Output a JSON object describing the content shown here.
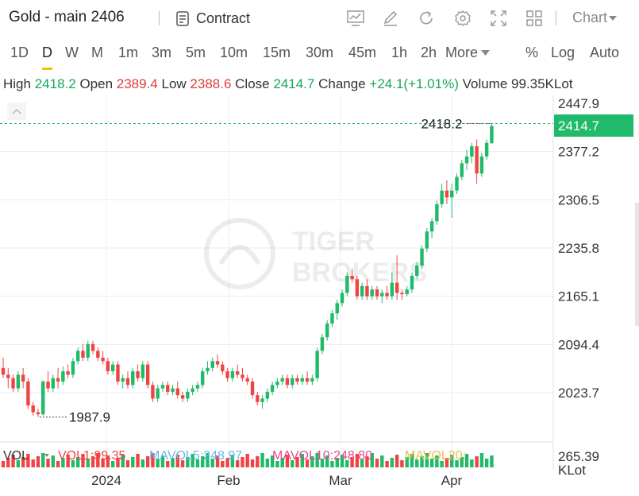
{
  "title": "Gold - main 2406",
  "toolbar": {
    "contract_label": "Contract",
    "chart_label": "Chart",
    "icons": [
      "chart-indicator-icon",
      "draw-pen-icon",
      "refresh-icon",
      "settings-gear-icon",
      "fullscreen-icon",
      "layout-grid-icon"
    ]
  },
  "intervals": [
    "1D",
    "D",
    "W",
    "M",
    "1m",
    "3m",
    "5m",
    "10m",
    "15m",
    "30m",
    "45m",
    "1h",
    "2h"
  ],
  "interval_more": "More",
  "active_interval": "D",
  "scale_options": {
    "percent": "%",
    "log": "Log",
    "auto": "Auto"
  },
  "ohlc": {
    "high_label": "High",
    "high": "2418.2",
    "open_label": "Open",
    "open": "2389.4",
    "low_label": "Low",
    "low": "2388.6",
    "close_label": "Close",
    "close": "2414.7",
    "change_label": "Change",
    "change": "+24.1(+1.01%)",
    "volume_label": "Volume",
    "volume": "99.35KLot"
  },
  "watermark": {
    "line1": "TIGER",
    "line2": "BROKERS"
  },
  "volume_panel": {
    "vol_label": "VOL",
    "vol1": "VOL1:99.35",
    "mavol5": "MAVOL5:248.97",
    "mavol10": "MAVOL10:248.80",
    "mavol20": "MAVOL20:",
    "axis_top": "265.39",
    "axis_unit": "KLot"
  },
  "colors": {
    "up": "#1fba6a",
    "down": "#ef4444",
    "accent": "#f5c000",
    "vol1": "#ef4444",
    "mavol5": "#6ab8e8",
    "mavol10": "#e64b8a",
    "mavol20": "#e8c14a"
  },
  "chart_data": {
    "type": "candlestick",
    "y_ticks": [
      "2447.9",
      "2377.2",
      "2306.5",
      "2235.8",
      "2165.1",
      "2094.4",
      "2023.7"
    ],
    "x_ticks": [
      "2024",
      "Feb",
      "Mar",
      "Apr"
    ],
    "last_price": "2414.7",
    "high_marker": "2418.2",
    "low_marker": "1987.9",
    "ylim": [
      1960,
      2470
    ],
    "candles": [
      [
        2060,
        2075,
        2045,
        2050
      ],
      [
        2050,
        2060,
        2030,
        2045
      ],
      [
        2045,
        2050,
        2025,
        2030
      ],
      [
        2030,
        2055,
        2025,
        2050
      ],
      [
        2050,
        2060,
        2030,
        2040
      ],
      [
        2040,
        2045,
        2000,
        2005
      ],
      [
        2005,
        2010,
        1990,
        1995
      ],
      [
        1995,
        2000,
        1988,
        1992
      ],
      [
        1992,
        2042,
        1990,
        2040
      ],
      [
        2040,
        2055,
        2025,
        2030
      ],
      [
        2030,
        2050,
        2025,
        2045
      ],
      [
        2045,
        2060,
        2030,
        2040
      ],
      [
        2040,
        2062,
        2035,
        2055
      ],
      [
        2055,
        2065,
        2045,
        2050
      ],
      [
        2050,
        2075,
        2045,
        2070
      ],
      [
        2070,
        2090,
        2065,
        2085
      ],
      [
        2085,
        2095,
        2070,
        2075
      ],
      [
        2075,
        2100,
        2070,
        2095
      ],
      [
        2095,
        2100,
        2080,
        2085
      ],
      [
        2085,
        2090,
        2070,
        2075
      ],
      [
        2075,
        2085,
        2065,
        2070
      ],
      [
        2070,
        2075,
        2050,
        2055
      ],
      [
        2055,
        2070,
        2050,
        2065
      ],
      [
        2065,
        2070,
        2035,
        2040
      ],
      [
        2040,
        2050,
        2030,
        2045
      ],
      [
        2045,
        2055,
        2030,
        2035
      ],
      [
        2035,
        2060,
        2030,
        2055
      ],
      [
        2055,
        2065,
        2040,
        2045
      ],
      [
        2045,
        2070,
        2040,
        2065
      ],
      [
        2065,
        2070,
        2030,
        2035
      ],
      [
        2035,
        2040,
        2010,
        2015
      ],
      [
        2015,
        2035,
        2010,
        2030
      ],
      [
        2030,
        2040,
        2025,
        2035
      ],
      [
        2035,
        2040,
        2020,
        2025
      ],
      [
        2025,
        2035,
        2020,
        2030
      ],
      [
        2030,
        2040,
        2015,
        2020
      ],
      [
        2020,
        2025,
        2010,
        2015
      ],
      [
        2015,
        2030,
        2010,
        2025
      ],
      [
        2025,
        2035,
        2020,
        2030
      ],
      [
        2030,
        2040,
        2025,
        2035
      ],
      [
        2035,
        2060,
        2030,
        2055
      ],
      [
        2055,
        2070,
        2050,
        2060
      ],
      [
        2060,
        2075,
        2055,
        2070
      ],
      [
        2070,
        2080,
        2060,
        2065
      ],
      [
        2065,
        2070,
        2050,
        2055
      ],
      [
        2055,
        2060,
        2040,
        2045
      ],
      [
        2045,
        2060,
        2040,
        2055
      ],
      [
        2055,
        2065,
        2045,
        2050
      ],
      [
        2050,
        2060,
        2040,
        2045
      ],
      [
        2045,
        2050,
        2035,
        2040
      ],
      [
        2040,
        2045,
        2015,
        2020
      ],
      [
        2020,
        2025,
        2005,
        2010
      ],
      [
        2010,
        2020,
        2000,
        2015
      ],
      [
        2015,
        2030,
        2010,
        2025
      ],
      [
        2025,
        2040,
        2020,
        2035
      ],
      [
        2035,
        2045,
        2030,
        2040
      ],
      [
        2040,
        2050,
        2035,
        2045
      ],
      [
        2045,
        2050,
        2030,
        2035
      ],
      [
        2035,
        2050,
        2030,
        2045
      ],
      [
        2045,
        2050,
        2035,
        2040
      ],
      [
        2040,
        2050,
        2035,
        2045
      ],
      [
        2045,
        2055,
        2035,
        2040
      ],
      [
        2040,
        2050,
        2035,
        2045
      ],
      [
        2045,
        2090,
        2040,
        2085
      ],
      [
        2085,
        2110,
        2080,
        2105
      ],
      [
        2105,
        2130,
        2100,
        2125
      ],
      [
        2125,
        2145,
        2120,
        2140
      ],
      [
        2140,
        2160,
        2130,
        2155
      ],
      [
        2155,
        2175,
        2150,
        2170
      ],
      [
        2170,
        2200,
        2165,
        2195
      ],
      [
        2195,
        2205,
        2185,
        2190
      ],
      [
        2190,
        2195,
        2160,
        2165
      ],
      [
        2165,
        2185,
        2160,
        2180
      ],
      [
        2180,
        2190,
        2160,
        2165
      ],
      [
        2165,
        2180,
        2160,
        2175
      ],
      [
        2175,
        2180,
        2160,
        2165
      ],
      [
        2165,
        2175,
        2155,
        2170
      ],
      [
        2170,
        2180,
        2160,
        2165
      ],
      [
        2165,
        2200,
        2160,
        2185
      ],
      [
        2185,
        2225,
        2160,
        2170
      ],
      [
        2170,
        2175,
        2160,
        2168
      ],
      [
        2168,
        2180,
        2165,
        2175
      ],
      [
        2175,
        2200,
        2170,
        2195
      ],
      [
        2195,
        2215,
        2190,
        2210
      ],
      [
        2210,
        2240,
        2205,
        2235
      ],
      [
        2235,
        2265,
        2230,
        2260
      ],
      [
        2260,
        2280,
        2250,
        2275
      ],
      [
        2275,
        2305,
        2270,
        2300
      ],
      [
        2300,
        2330,
        2295,
        2320
      ],
      [
        2320,
        2335,
        2300,
        2310
      ],
      [
        2310,
        2330,
        2280,
        2320
      ],
      [
        2320,
        2345,
        2315,
        2340
      ],
      [
        2340,
        2365,
        2335,
        2360
      ],
      [
        2360,
        2380,
        2350,
        2370
      ],
      [
        2370,
        2390,
        2360,
        2385
      ],
      [
        2385,
        2395,
        2330,
        2345
      ],
      [
        2345,
        2375,
        2340,
        2370
      ],
      [
        2370,
        2395,
        2365,
        2390
      ],
      [
        2389.4,
        2418.2,
        2388.6,
        2414.7
      ]
    ]
  }
}
